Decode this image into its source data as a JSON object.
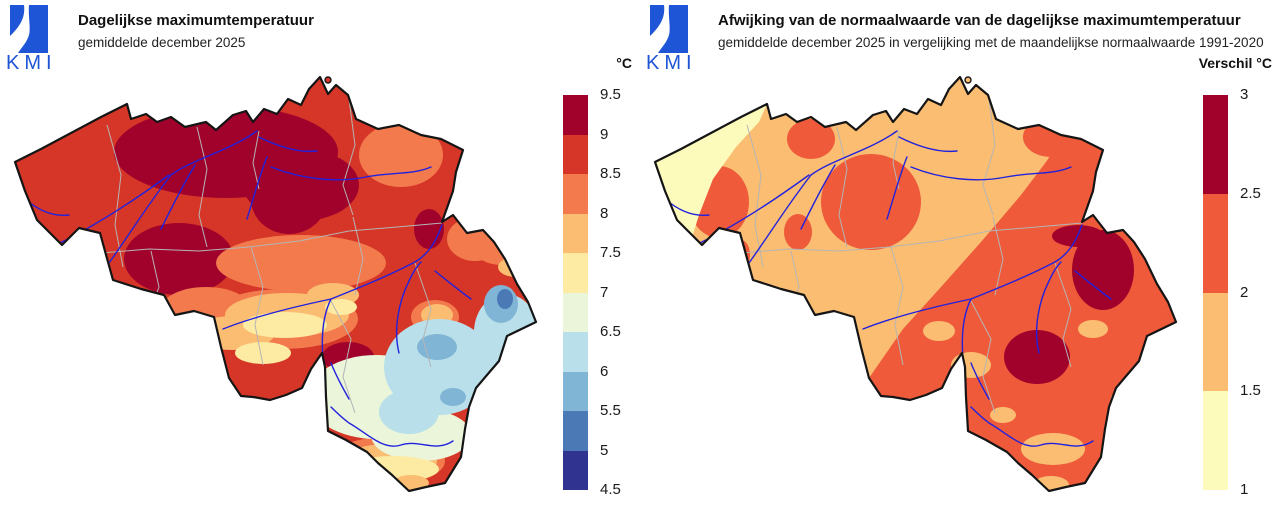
{
  "panels": [
    {
      "logo_text": "KMI",
      "title": "Dagelijkse maximumtemperatuur",
      "subtitle": "gemiddelde december 2025",
      "legend": {
        "title": "°C",
        "ticks": [
          "9.5",
          "9",
          "8.5",
          "8",
          "7.5",
          "7",
          "6.5",
          "6",
          "5.5",
          "5",
          "4.5"
        ],
        "colors": [
          "#a1022c",
          "#d63627",
          "#f27a4d",
          "#fabd72",
          "#fdeba3",
          "#ebf5da",
          "#b9e0ea",
          "#80b5d6",
          "#4a79b6",
          "#313391"
        ]
      },
      "map_region": "Belgium"
    },
    {
      "logo_text": "KMI",
      "title": "Afwijking van de normaalwaarde van de dagelijkse maximumtemperatuur",
      "subtitle": "gemiddelde december 2025 in vergelijking met de maandelijkse normaalwaarde 1991-2020",
      "legend": {
        "title": "Verschil °C",
        "ticks": [
          "3",
          "2.5",
          "2",
          "1.5",
          "1"
        ],
        "colors": [
          "#a1022c",
          "#ee5a3a",
          "#fabd72",
          "#fdfbbc"
        ]
      },
      "map_region": "Belgium"
    }
  ],
  "colors": {
    "logo_blue": "#1e55d6",
    "country_border": "#151515",
    "province_border": "#b5b5b5",
    "river_blue": "#2222dd"
  }
}
